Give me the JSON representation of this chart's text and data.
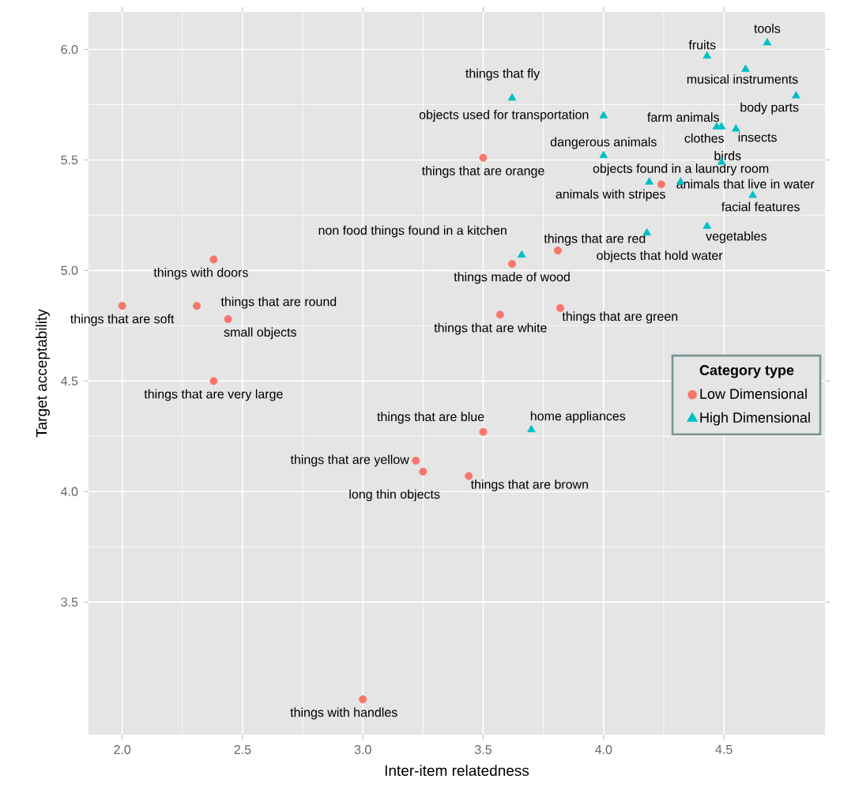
{
  "chart_data": {
    "type": "scatter",
    "xlabel": "Inter-item relatedness",
    "ylabel": "Target acceptability",
    "legend_title": "Category type",
    "legend": "right",
    "grid": true,
    "xlim": [
      1.86,
      4.92
    ],
    "ylim": [
      2.9,
      6.17
    ],
    "xticks": [
      {
        "value": 2,
        "label": "2.0"
      },
      {
        "value": 2.5,
        "label": "2.5"
      },
      {
        "value": 3,
        "label": "3.0"
      },
      {
        "value": 3.5,
        "label": "3.5"
      },
      {
        "value": 4,
        "label": "4.0"
      },
      {
        "value": 4.5,
        "label": "4.5"
      }
    ],
    "yticks": [
      {
        "value": 3.5,
        "label": "3.5"
      },
      {
        "value": 4,
        "label": "4.0"
      },
      {
        "value": 4.5,
        "label": "4.5"
      },
      {
        "value": 5,
        "label": "5.0"
      },
      {
        "value": 5.5,
        "label": "5.5"
      },
      {
        "value": 6,
        "label": "6.0"
      }
    ],
    "series": [
      {
        "name": "Low Dimensional",
        "color": "#f8766d",
        "marker": "circle",
        "x": [
          2.38,
          2.0,
          2.31,
          2.44,
          2.38,
          3.5,
          3.62,
          3.81,
          3.57,
          3.82,
          4.24,
          3.5,
          3.22,
          3.25,
          3.44,
          3.0
        ],
        "values": [
          5.05,
          4.84,
          4.84,
          4.78,
          4.5,
          5.51,
          5.03,
          5.09,
          4.8,
          4.83,
          5.39,
          4.27,
          4.14,
          4.09,
          4.07,
          3.06
        ],
        "value_labels": [
          "things with doors",
          "things that are soft",
          "things that are round",
          "small objects",
          "things that are very large",
          "things that are orange",
          "things made of wood",
          "things that are red",
          "things that are white",
          "things that are green",
          "animals with stripes",
          "things that are blue",
          "things that are yellow",
          "long thin objects",
          "things that are brown",
          "things with handles"
        ]
      },
      {
        "name": "High Dimensional",
        "color": "#00bfc4",
        "marker": "triangle",
        "x": [
          4.68,
          4.43,
          4.59,
          4.8,
          3.62,
          4.0,
          4.47,
          4.49,
          4.55,
          4.0,
          4.49,
          4.19,
          4.32,
          4.62,
          4.43,
          4.18,
          3.66,
          3.7
        ],
        "values": [
          6.03,
          5.97,
          5.91,
          5.79,
          5.78,
          5.7,
          5.65,
          5.65,
          5.64,
          5.52,
          5.49,
          5.4,
          5.4,
          5.34,
          5.2,
          5.17,
          5.07,
          4.28
        ],
        "value_labels": [
          "tools",
          "fruits",
          "musical instruments",
          "body parts",
          "things that fly",
          "objects used for transportation",
          "farm animals",
          "clothes",
          "insects",
          "dangerous animals",
          "birds",
          "objects found in a laundry room",
          "animals that live in water",
          "facial features",
          "vegetables",
          "objects that hold water",
          "non food things found in a kitchen",
          "home appliances"
        ]
      }
    ]
  }
}
